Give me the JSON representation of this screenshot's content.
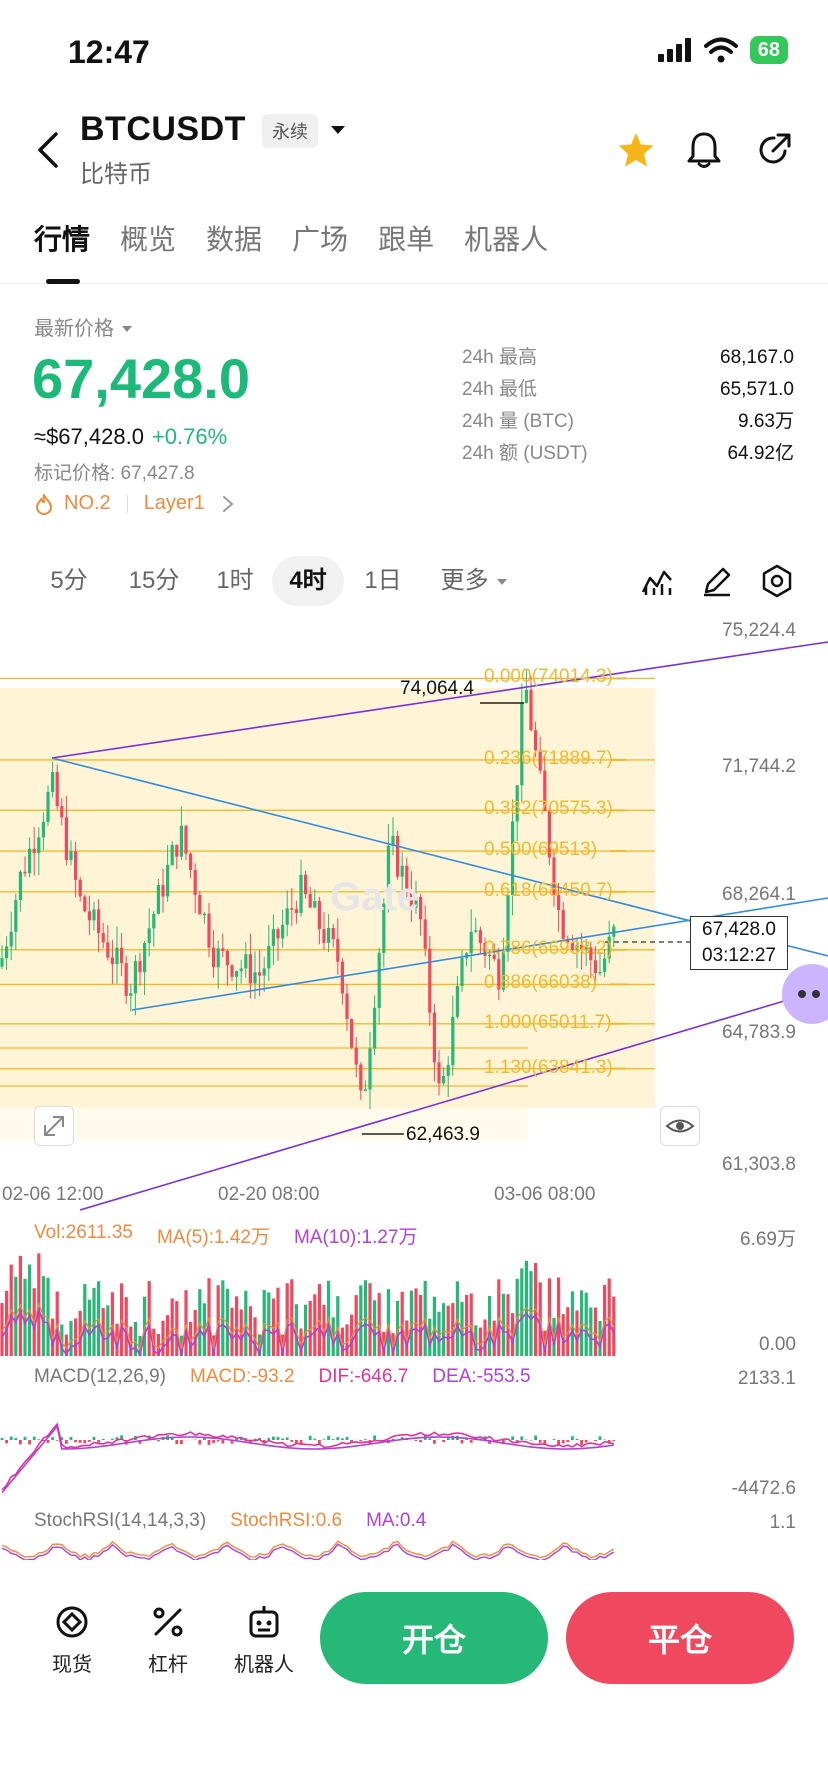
{
  "status": {
    "time": "12:47",
    "battery": "68"
  },
  "header": {
    "symbol": "BTCUSDT",
    "badge": "永续",
    "subtitle": "比特币"
  },
  "tabs": [
    {
      "label": "行情",
      "active": true
    },
    {
      "label": "概览"
    },
    {
      "label": "数据"
    },
    {
      "label": "广场"
    },
    {
      "label": "跟单"
    },
    {
      "label": "机器人"
    }
  ],
  "price": {
    "last_label": "最新价格",
    "last": "67,428.0",
    "usd": "≈$67,428.0",
    "change": "+0.76%",
    "mark": "标记价格: 67,427.8",
    "tag_rank": "NO.2",
    "tag_sector": "Layer1"
  },
  "stats": [
    {
      "key": "24h  最高",
      "value": "68,167.0"
    },
    {
      "key": "24h  最低",
      "value": "65,571.0"
    },
    {
      "key": "24h  量 (BTC)",
      "value": "9.63万"
    },
    {
      "key": "24h  额 (USDT)",
      "value": "64.92亿"
    }
  ],
  "intervals": [
    {
      "label": "5分"
    },
    {
      "label": "15分"
    },
    {
      "label": "1时"
    },
    {
      "label": "4时",
      "active": true
    },
    {
      "label": "1日"
    },
    {
      "label": "更多"
    }
  ],
  "chart": {
    "price_axis": [
      "75,224.4",
      "71,744.2",
      "68,264.1",
      "64,783.9",
      "61,303.8"
    ],
    "current_price": "67,428.0",
    "countdown": "03:12:27",
    "high_label": "74,064.4",
    "low_label": "62,463.9",
    "fib_levels": [
      "0.000(74014.3)",
      "0.236(71889.7)",
      "0.382(70575.3)",
      "0.500(69513)",
      "0.618(68450.7)",
      "0.786(66938.2)",
      "0.886(66038)",
      "1.000(65011.7)",
      "1.130(63841.3)"
    ],
    "time_axis": [
      "02-06 12:00",
      "02-20 08:00",
      "03-06 08:00"
    ],
    "colors": {
      "up": "#25b877",
      "down": "#f0485f",
      "fib": "#f3b92b",
      "trend_blue": "#2f8de0",
      "trend_purple": "#7a2ee0"
    }
  },
  "volume": {
    "vol": "Vol:2611.35",
    "ma5": "MA(5):1.42万",
    "ma10": "MA(10):1.27万",
    "axis_top": "6.69万",
    "axis_bottom": "0.00"
  },
  "macd": {
    "title": "MACD(12,26,9)",
    "macd": "MACD:-93.2",
    "dif": "DIF:-646.7",
    "dea": "DEA:-553.5",
    "axis_top": "2133.1",
    "axis_bottom": "-4472.6"
  },
  "stochrsi": {
    "title": "StochRSI(14,14,3,3)",
    "value": "StochRSI:0.6",
    "ma": "MA:0.4",
    "axis_top": "1.1"
  },
  "bottom": {
    "spot": "现货",
    "lever": "杠杆",
    "robot": "机器人",
    "open": "开仓",
    "close": "平仓"
  }
}
